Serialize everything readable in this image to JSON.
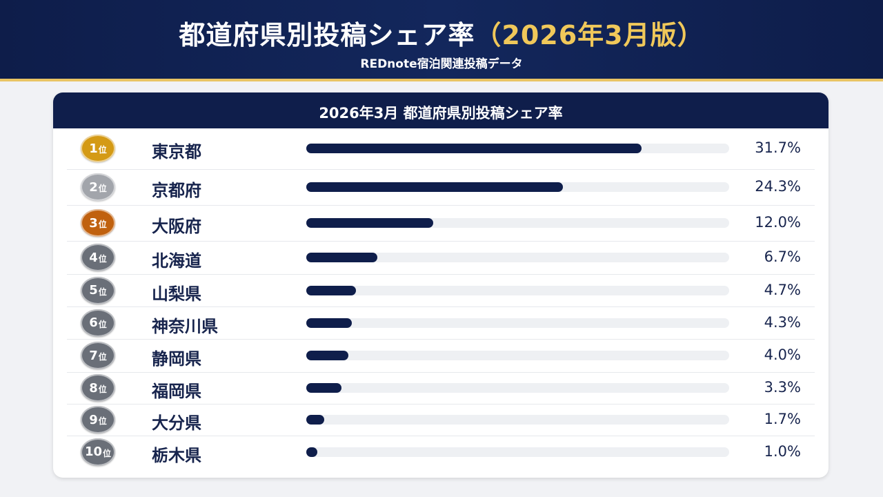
{
  "header": {
    "title_main": "都道府県別投稿シェア率",
    "title_accent": "（2026年3月版）",
    "subtitle": "REDnote宿泊関連投稿データ"
  },
  "colors": {
    "navy": "#0f1e4b",
    "gold_line": "#e9c463",
    "rank1": "#d49a15",
    "rank2": "#a2a5ab",
    "rank3": "#c0610f",
    "rank_other": "#6a6f78"
  },
  "chart_data": {
    "type": "bar",
    "title": "2026年3月 都道府県別投稿シェア率",
    "rank_suffix": "位",
    "unit": "%",
    "xlim": [
      0,
      40
    ],
    "rows": [
      {
        "rank": "1",
        "prefecture": "東京都",
        "value": 31.7,
        "label": "31.7%"
      },
      {
        "rank": "2",
        "prefecture": "京都府",
        "value": 24.3,
        "label": "24.3%"
      },
      {
        "rank": "3",
        "prefecture": "大阪府",
        "value": 12.0,
        "label": "12.0%"
      },
      {
        "rank": "4",
        "prefecture": "北海道",
        "value": 6.7,
        "label": "6.7%"
      },
      {
        "rank": "5",
        "prefecture": "山梨県",
        "value": 4.7,
        "label": "4.7%"
      },
      {
        "rank": "6",
        "prefecture": "神奈川県",
        "value": 4.3,
        "label": "4.3%"
      },
      {
        "rank": "7",
        "prefecture": "静岡県",
        "value": 4.0,
        "label": "4.0%"
      },
      {
        "rank": "8",
        "prefecture": "福岡県",
        "value": 3.3,
        "label": "3.3%"
      },
      {
        "rank": "9",
        "prefecture": "大分県",
        "value": 1.7,
        "label": "1.7%"
      },
      {
        "rank": "10",
        "prefecture": "栃木県",
        "value": 1.0,
        "label": "1.0%"
      }
    ]
  }
}
